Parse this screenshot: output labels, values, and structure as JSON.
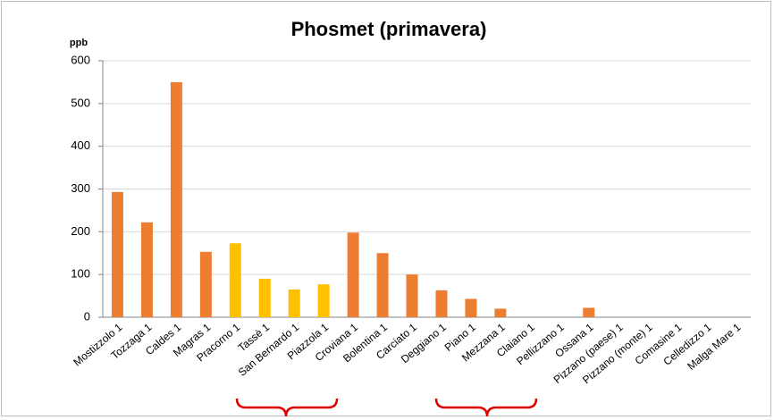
{
  "chart_data": {
    "type": "bar",
    "title": "Phosmet (primavera)",
    "y_label": "ppb",
    "categories": [
      "Mostizzolo 1",
      "Tozzaga 1",
      "Caldes 1",
      "Magras 1",
      "Pracorno 1",
      "Tassè 1",
      "San Bernardo 1",
      "Piazzola 1",
      "Croviana 1",
      "Bolentina 1",
      "Carciato 1",
      "Deggiano 1",
      "Piano 1",
      "Mezzana 1",
      "Claiano 1",
      "Pellizzano 1",
      "Ossana 1",
      "Pizzano (paese) 1",
      "Pizzano (monte) 1",
      "Comasine 1",
      "Celledizzo 1",
      "Malga Mare 1"
    ],
    "values": [
      293,
      222,
      550,
      153,
      173,
      90,
      65,
      77,
      198,
      150,
      100,
      63,
      43,
      20,
      0,
      0,
      22,
      0,
      0,
      0,
      0,
      0
    ],
    "colors": [
      "#ED7D31",
      "#ED7D31",
      "#ED7D31",
      "#ED7D31",
      "#FFC000",
      "#FFC000",
      "#FFC000",
      "#FFC000",
      "#ED7D31",
      "#ED7D31",
      "#ED7D31",
      "#ED7D31",
      "#ED7D31",
      "#ED7D31",
      "#ED7D31",
      "#ED7D31",
      "#ED7D31",
      "#ED7D31",
      "#ED7D31",
      "#ED7D31",
      "#ED7D31",
      "#ED7D31"
    ],
    "ylim": [
      0,
      600
    ],
    "yticks": [
      0,
      100,
      200,
      300,
      400,
      500,
      600
    ],
    "grid": true
  }
}
